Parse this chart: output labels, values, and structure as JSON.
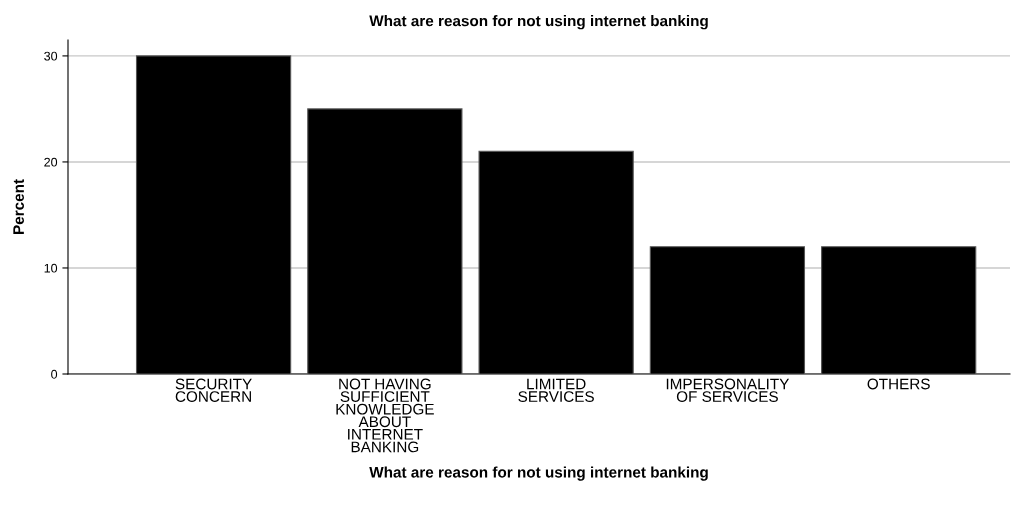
{
  "chart_data": {
    "type": "bar",
    "title": "What are reason for not using internet banking",
    "xlabel": "What are reason for not using internet banking",
    "ylabel": "Percent",
    "categories": [
      "SECURITY\nCONCERN",
      "NOT HAVING\nSUFFICIENT\nKNOWLEDGE\nABOUT\nINTERNET\nBANKING",
      "LIMITED\nSERVICES",
      "IMPERSONALITY\nOF SERVICES",
      "OTHERS"
    ],
    "values": [
      30,
      25,
      21,
      12,
      12
    ],
    "color": "#000000",
    "ylim": [
      0,
      31.5
    ],
    "yticks": [
      0,
      10,
      20,
      30
    ],
    "grid": "y"
  }
}
